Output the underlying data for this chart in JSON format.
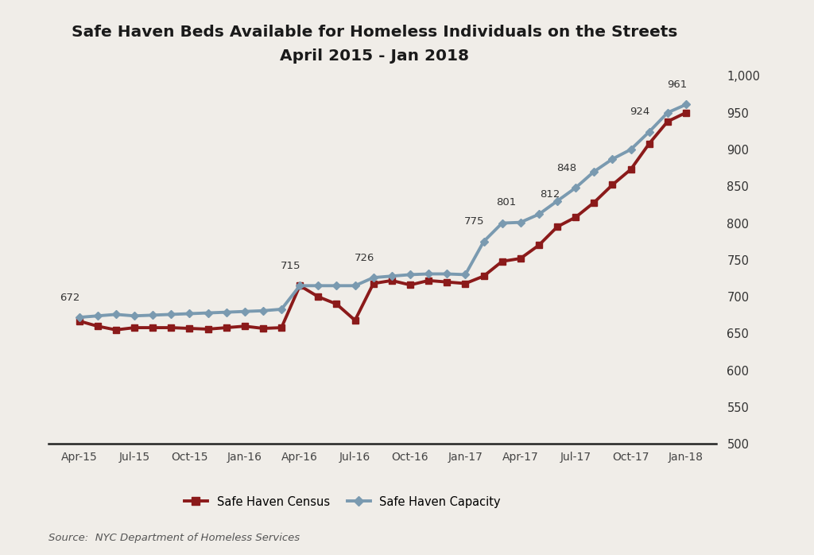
{
  "title_line1": "Safe Haven Beds Available for Homeless Individuals on the Streets",
  "title_line2": "April 2015 - Jan 2018",
  "source": "Source:  NYC Department of Homeless Services",
  "background_color": "#f0ede8",
  "capacity_color": "#7a9ab0",
  "census_color": "#8b1a1a",
  "x_labels": [
    "Apr-15",
    "Jul-15",
    "Oct-15",
    "Jan-16",
    "Apr-16",
    "Jul-16",
    "Oct-16",
    "Jan-17",
    "Apr-17",
    "Jul-17",
    "Oct-17",
    "Jan-18"
  ],
  "ylim": [
    500,
    1005
  ],
  "yticks": [
    500,
    550,
    600,
    650,
    700,
    750,
    800,
    850,
    900,
    950,
    1000
  ],
  "capacity_values": [
    672,
    674,
    676,
    674,
    675,
    676,
    677,
    678,
    679,
    680,
    681,
    683,
    715,
    715,
    715,
    715,
    726,
    728,
    730,
    731,
    731,
    730,
    775,
    800,
    801,
    812,
    830,
    848,
    870,
    887,
    900,
    924,
    950,
    961
  ],
  "census_values": [
    667,
    660,
    655,
    658,
    658,
    658,
    657,
    656,
    658,
    660,
    657,
    658,
    715,
    700,
    690,
    668,
    718,
    722,
    716,
    722,
    720,
    718,
    728,
    748,
    752,
    770,
    795,
    808,
    828,
    852,
    873,
    908,
    938,
    950
  ],
  "annot_capacity": [
    {
      "xi": 0,
      "yi": 672,
      "label": "672"
    },
    {
      "xi": 12,
      "yi": 715,
      "label": "715"
    },
    {
      "xi": 16,
      "yi": 726,
      "label": "726"
    },
    {
      "xi": 22,
      "yi": 775,
      "label": "775"
    },
    {
      "xi": 24,
      "yi": 801,
      "label": "801"
    },
    {
      "xi": 25,
      "yi": 812,
      "label": "812"
    },
    {
      "xi": 27,
      "yi": 848,
      "label": "848"
    },
    {
      "xi": 31,
      "yi": 924,
      "label": "924"
    },
    {
      "xi": 33,
      "yi": 961,
      "label": "961"
    }
  ],
  "legend_capacity": "Safe Haven Capacity",
  "legend_census": "Safe Haven Census",
  "n_points": 34
}
